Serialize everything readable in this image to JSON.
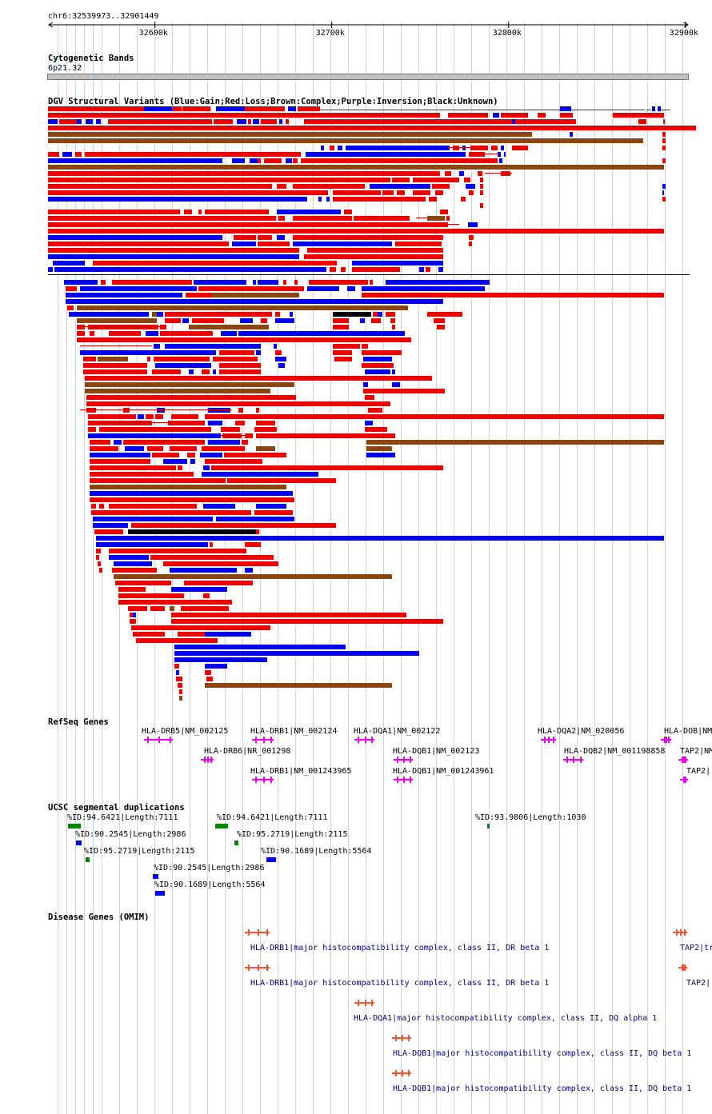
{
  "region": {
    "label": "chr6:32539973..32901449",
    "start": 32539973,
    "end": 32901449
  },
  "ruler": {
    "ticks": [
      {
        "pos": 32600000,
        "label": "32600k"
      },
      {
        "pos": 32700000,
        "label": "32700k"
      },
      {
        "pos": 32800000,
        "label": "32800k"
      },
      {
        "pos": 32900000,
        "label": "32900k"
      }
    ]
  },
  "colors": {
    "gain": "#0000ee",
    "loss": "#ee0000",
    "complex": "#8b4513",
    "inversion": "#800080",
    "unknown": "#000000",
    "refseq": "#ee00ee",
    "segdup": "#008800",
    "omim": "#ee5533",
    "grid": "#bcd8ee"
  },
  "tracks": {
    "cytoband": {
      "title": "Cytogenetic Bands",
      "band": "6p21.32"
    },
    "dgv": {
      "title": "DGV Structural Variants (Blue:Gain;Red:Loss;Brown:Complex;Purple:Inversion;Black:Unknown)"
    },
    "refseq": {
      "title": "RefSeq Genes",
      "genes": [
        {
          "label": "HLA-DRB5|NM_002125",
          "start": 32594000,
          "end": 32610000
        },
        {
          "label": "HLA-DRB6|NR_001298",
          "start": 32626000,
          "end": 32633000
        },
        {
          "label": "HLA-DRB1|NM_002124",
          "start": 32655000,
          "end": 32667000
        },
        {
          "label": "HLA-DRB1|NM_001243965",
          "start": 32655000,
          "end": 32667000
        },
        {
          "label": "HLA-DQA1|NM_002122",
          "start": 32713000,
          "end": 32724000
        },
        {
          "label": "HLA-DQB1|NM_002123",
          "start": 32735000,
          "end": 32746000
        },
        {
          "label": "HLA-DQB1|NM_001243961",
          "start": 32735000,
          "end": 32746000
        },
        {
          "label": "HLA-DQA2|NM_020056",
          "start": 32818000,
          "end": 32827000
        },
        {
          "label": "HLA-DQB2|NM_001198858",
          "start": 32831000,
          "end": 32842000
        },
        {
          "label": "HLA-DOB|NM",
          "start": 32886000,
          "end": 32892000
        },
        {
          "label": "TAP2|NM",
          "start": 32896000,
          "end": 32901449
        },
        {
          "label": "TAP2|",
          "start": 32897000,
          "end": 32901449
        }
      ]
    },
    "segdup": {
      "title": "UCSC segmental duplications",
      "items": [
        {
          "label": "%ID:94.6421|Length:7111",
          "start": 32551000,
          "end": 32558111
        },
        {
          "label": "%ID:94.6421|Length:7111",
          "start": 32634000,
          "end": 32641111
        },
        {
          "label": "%ID:93.9806|Length:1030",
          "start": 32788000,
          "end": 32789030
        },
        {
          "label": "%ID:90.2545|Length:2986",
          "start": 32555500,
          "end": 32558486
        },
        {
          "label": "%ID:95.2719|Length:2115",
          "start": 32645000,
          "end": 32647115
        },
        {
          "label": "%ID:95.2719|Length:2115",
          "start": 32561000,
          "end": 32563115
        },
        {
          "label": "%ID:90.1689|Length:5564",
          "start": 32663000,
          "end": 32668564
        },
        {
          "label": "%ID:90.2545|Length:2986",
          "start": 32599000,
          "end": 32601986
        },
        {
          "label": "%ID:90.1689|Length:5564",
          "start": 32600000,
          "end": 32605564
        }
      ]
    },
    "omim": {
      "title": "Disease Genes (OMIM)",
      "items": [
        {
          "label": "HLA-DRB1|major histocompatibility complex, class II, DR beta 1",
          "start": 32651000,
          "end": 32665000
        },
        {
          "label": "HLA-DRB1|major histocompatibility complex, class II, DR beta 1",
          "start": 32651000,
          "end": 32665000
        },
        {
          "label": "HLA-DQA1|major histocompatibility complex, class II, DQ alpha 1",
          "start": 32713000,
          "end": 32724000
        },
        {
          "label": "HLA-DQB1|major histocompatibility complex, class II, DQ beta 1",
          "start": 32734000,
          "end": 32745000
        },
        {
          "label": "HLA-DQB1|major histocompatibility complex, class II, DQ beta 1",
          "start": 32734000,
          "end": 32745000
        },
        {
          "label": "TAP2|tr",
          "start": 32893000,
          "end": 32901000
        },
        {
          "label": "TAP2|",
          "start": 32896000,
          "end": 32901000
        }
      ]
    }
  }
}
